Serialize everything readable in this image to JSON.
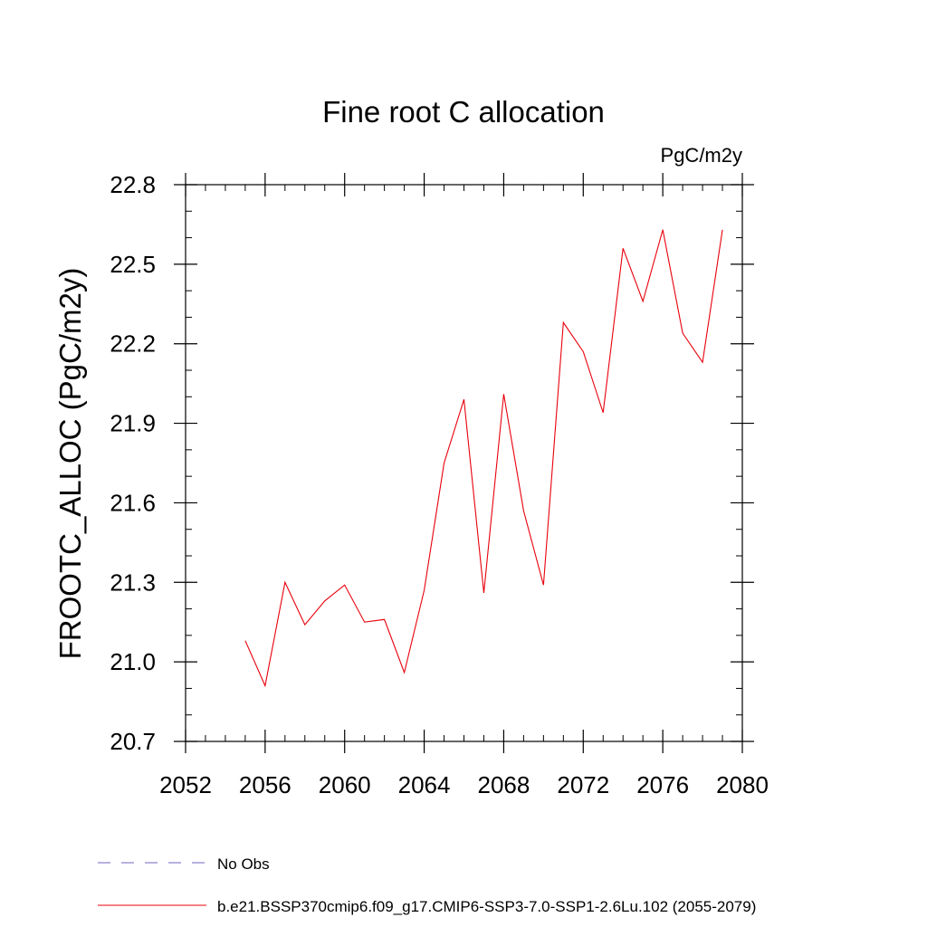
{
  "chart_data": {
    "type": "line",
    "title": "Fine root C allocation",
    "units_label": "PgC/m2y",
    "ylabel": "FROOTC_ALLOC  (PgC/m2y)",
    "xlabel": "",
    "xlim": [
      2052,
      2080
    ],
    "ylim": [
      20.7,
      22.8
    ],
    "x_ticks": [
      2052,
      2056,
      2060,
      2064,
      2068,
      2072,
      2076,
      2080
    ],
    "x_tick_labels": [
      "2052",
      "2056",
      "2060",
      "2064",
      "2068",
      "2072",
      "2076",
      "2080"
    ],
    "x_minor_step": 1,
    "y_ticks": [
      20.7,
      21.0,
      21.3,
      21.6,
      21.9,
      22.2,
      22.5,
      22.8
    ],
    "y_tick_labels": [
      "20.7",
      "21.0",
      "21.3",
      "21.6",
      "21.9",
      "22.2",
      "22.5",
      "22.8"
    ],
    "y_minor_step": 0.1,
    "grid": false,
    "legend_position": "bottom",
    "series": [
      {
        "name": "b.e21.BSSP370cmip6.f09_g17.CMIP6-SSP3-7.0-SSP1-2.6Lu.102 (2055-2079)",
        "color": "#e8000b",
        "style": "solid",
        "x": [
          2055,
          2056,
          2057,
          2058,
          2059,
          2060,
          2061,
          2062,
          2063,
          2064,
          2065,
          2066,
          2067,
          2068,
          2069,
          2070,
          2071,
          2072,
          2073,
          2074,
          2075,
          2076,
          2077,
          2078,
          2079
        ],
        "y": [
          21.08,
          20.91,
          21.3,
          21.14,
          21.23,
          21.29,
          21.15,
          21.16,
          20.96,
          21.27,
          21.75,
          21.99,
          21.26,
          22.01,
          21.57,
          21.29,
          22.28,
          22.17,
          21.94,
          22.56,
          22.36,
          22.63,
          22.24,
          22.13,
          22.63
        ]
      }
    ],
    "legend": [
      {
        "label": "No Obs",
        "color": "#6f66c2",
        "style": "dashed"
      },
      {
        "label": "b.e21.BSSP370cmip6.f09_g17.CMIP6-SSP3-7.0-SSP1-2.6Lu.102 (2055-2079)",
        "color": "#e8000b",
        "style": "solid"
      }
    ]
  }
}
